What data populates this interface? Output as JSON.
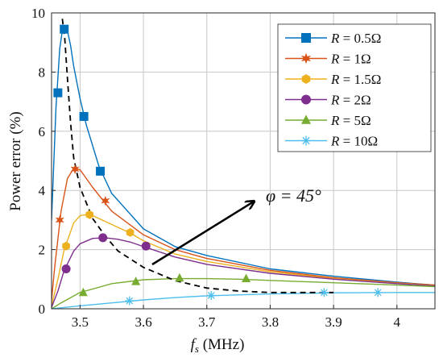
{
  "chart_data": {
    "type": "line",
    "xlabel_symbol": "f",
    "xlabel_sub": "s",
    "xlabel_unit": " (MHz)",
    "ylabel": "Power error (%)",
    "xlim": [
      3.455,
      4.06
    ],
    "ylim": [
      0,
      10
    ],
    "xticks": [
      3.5,
      3.6,
      3.7,
      3.8,
      3.9,
      4.0
    ],
    "xtick_labels": [
      "3.5",
      "3.6",
      "3.7",
      "3.8",
      "3.9",
      "4"
    ],
    "yticks": [
      0,
      2,
      4,
      6,
      8,
      10
    ],
    "ytick_labels": [
      "0",
      "2",
      "4",
      "6",
      "8",
      "10"
    ],
    "grid": true,
    "legend_position": "top-right",
    "annotation": "φ = 45°",
    "series": [
      {
        "name": "R = 0.5Ω",
        "legend_prefix": "R",
        "legend_value": " = 0.5Ω",
        "color": "#0072BD",
        "marker": "square",
        "x": [
          3.455,
          3.462,
          3.468,
          3.472,
          3.476,
          3.48,
          3.485,
          3.49,
          3.5,
          3.51,
          3.53,
          3.55,
          3.6,
          3.65,
          3.7,
          3.8,
          3.9,
          4.0,
          4.06
        ],
        "y": [
          3.0,
          6.8,
          8.8,
          9.4,
          9.55,
          9.4,
          8.9,
          8.2,
          7.1,
          6.2,
          4.8,
          3.9,
          2.7,
          2.1,
          1.8,
          1.35,
          1.1,
          0.9,
          0.8
        ],
        "marker_x": [
          3.465,
          3.475,
          3.506,
          3.532
        ],
        "marker_y": [
          7.3,
          9.45,
          6.5,
          4.65
        ]
      },
      {
        "name": "R = 1Ω",
        "legend_prefix": "R",
        "legend_value": " = 1Ω",
        "color": "#D95319",
        "marker": "hexagram",
        "x": [
          3.455,
          3.46,
          3.47,
          3.48,
          3.49,
          3.5,
          3.52,
          3.55,
          3.6,
          3.65,
          3.7,
          3.8,
          3.9,
          4.0,
          4.06
        ],
        "y": [
          0.3,
          1.4,
          3.3,
          4.4,
          4.75,
          4.7,
          4.1,
          3.3,
          2.5,
          2.0,
          1.7,
          1.3,
          1.05,
          0.88,
          0.8
        ],
        "marker_x": [
          3.468,
          3.492,
          3.54
        ],
        "marker_y": [
          3.0,
          4.72,
          3.65
        ]
      },
      {
        "name": "R = 1.5Ω",
        "legend_prefix": "R",
        "legend_value": " = 1.5Ω",
        "color": "#EDB120",
        "marker": "hexagon",
        "x": [
          3.455,
          3.465,
          3.475,
          3.49,
          3.5,
          3.515,
          3.53,
          3.55,
          3.58,
          3.6,
          3.65,
          3.7,
          3.8,
          3.9,
          4.0,
          4.06
        ],
        "y": [
          0.1,
          1.0,
          2.0,
          2.9,
          3.15,
          3.2,
          3.05,
          2.85,
          2.55,
          2.3,
          1.85,
          1.6,
          1.25,
          1.02,
          0.86,
          0.78
        ],
        "marker_x": [
          3.478,
          3.515,
          3.579
        ],
        "marker_y": [
          2.12,
          3.18,
          2.58
        ]
      },
      {
        "name": "R = 2Ω",
        "legend_prefix": "R",
        "legend_value": " = 2Ω",
        "color": "#7E2F8E",
        "marker": "circle",
        "x": [
          3.455,
          3.465,
          3.475,
          3.49,
          3.5,
          3.52,
          3.54,
          3.56,
          3.58,
          3.6,
          3.65,
          3.7,
          3.8,
          3.9,
          4.0,
          4.06
        ],
        "y": [
          0.05,
          0.6,
          1.3,
          1.95,
          2.2,
          2.38,
          2.4,
          2.35,
          2.25,
          2.1,
          1.75,
          1.5,
          1.2,
          1.0,
          0.85,
          0.77
        ],
        "marker_x": [
          3.478,
          3.536,
          3.604
        ],
        "marker_y": [
          1.35,
          2.4,
          2.12
        ]
      },
      {
        "name": "R = 5Ω",
        "legend_prefix": "R",
        "legend_value": " = 5Ω",
        "color": "#77AC30",
        "marker": "triangle",
        "x": [
          3.455,
          3.47,
          3.5,
          3.55,
          3.6,
          3.65,
          3.7,
          3.75,
          3.8,
          3.9,
          4.0,
          4.06
        ],
        "y": [
          0.0,
          0.2,
          0.55,
          0.85,
          0.98,
          1.02,
          1.02,
          1.0,
          0.96,
          0.88,
          0.8,
          0.75
        ],
        "marker_x": [
          3.505,
          3.588,
          3.657,
          3.762
        ],
        "marker_y": [
          0.55,
          0.92,
          1.04,
          1.02
        ]
      },
      {
        "name": "R = 10Ω",
        "legend_prefix": "R",
        "legend_value": " = 10Ω",
        "color": "#4DBEEE",
        "marker": "asterisk",
        "x": [
          3.455,
          3.5,
          3.55,
          3.6,
          3.65,
          3.7,
          3.8,
          3.9,
          4.0,
          4.06
        ],
        "y": [
          0.0,
          0.1,
          0.2,
          0.3,
          0.38,
          0.44,
          0.5,
          0.54,
          0.55,
          0.55
        ],
        "marker_x": [
          3.578,
          3.707,
          3.885,
          3.97
        ],
        "marker_y": [
          0.27,
          0.45,
          0.55,
          0.55
        ]
      },
      {
        "name": "",
        "color": "#000000",
        "dashed": true,
        "x": [
          3.472,
          3.476,
          3.48,
          3.485,
          3.49,
          3.5,
          3.52,
          3.54,
          3.56,
          3.6,
          3.65,
          3.7,
          3.75,
          3.8,
          3.9
        ],
        "y": [
          9.8,
          9.1,
          7.8,
          6.3,
          5.1,
          4.1,
          3.05,
          2.45,
          1.95,
          1.4,
          0.95,
          0.7,
          0.6,
          0.55,
          0.55
        ]
      }
    ]
  }
}
